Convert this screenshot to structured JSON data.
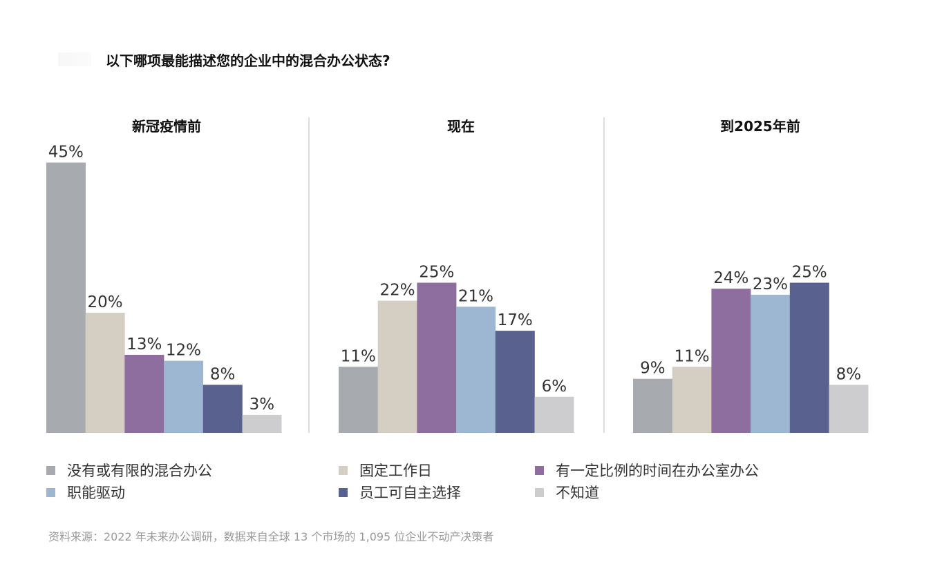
{
  "title": "以下哪项最能描述您的企业中的混合办公状态?",
  "source": "资料来源：2022 年未来办公调研，数据来自全球 13 个市场的 1,095 位企业不动产决策者",
  "chart_data": {
    "type": "bar",
    "series": [
      {
        "name": "没有或有限的混合办公",
        "color": "#a7aaaf"
      },
      {
        "name": "固定工作日",
        "color": "#d5cec3"
      },
      {
        "name": "有一定比例的时间在办公室办公",
        "color": "#8e6e9e"
      },
      {
        "name": "职能驱动",
        "color": "#9db6d2"
      },
      {
        "name": "员工可自主选择",
        "color": "#59628f"
      },
      {
        "name": "不知道",
        "color": "#cdcdcf"
      }
    ],
    "panels": [
      {
        "title": "新冠疫情前",
        "values": [
          45,
          20,
          13,
          12,
          8,
          3
        ],
        "labels": [
          "45%",
          "20%",
          "13%",
          "12%",
          "8%",
          "3%"
        ]
      },
      {
        "title": "现在",
        "values": [
          11,
          22,
          25,
          21,
          17,
          6
        ],
        "labels": [
          "11%",
          "22%",
          "25%",
          "21%",
          "17%",
          "6%"
        ]
      },
      {
        "title": "到2025年前",
        "values": [
          9,
          11,
          24,
          23,
          25,
          8
        ],
        "labels": [
          "9%",
          "11%",
          "24%",
          "23%",
          "25%",
          "8%"
        ]
      }
    ],
    "legend_position": "bottom",
    "grid": false
  }
}
